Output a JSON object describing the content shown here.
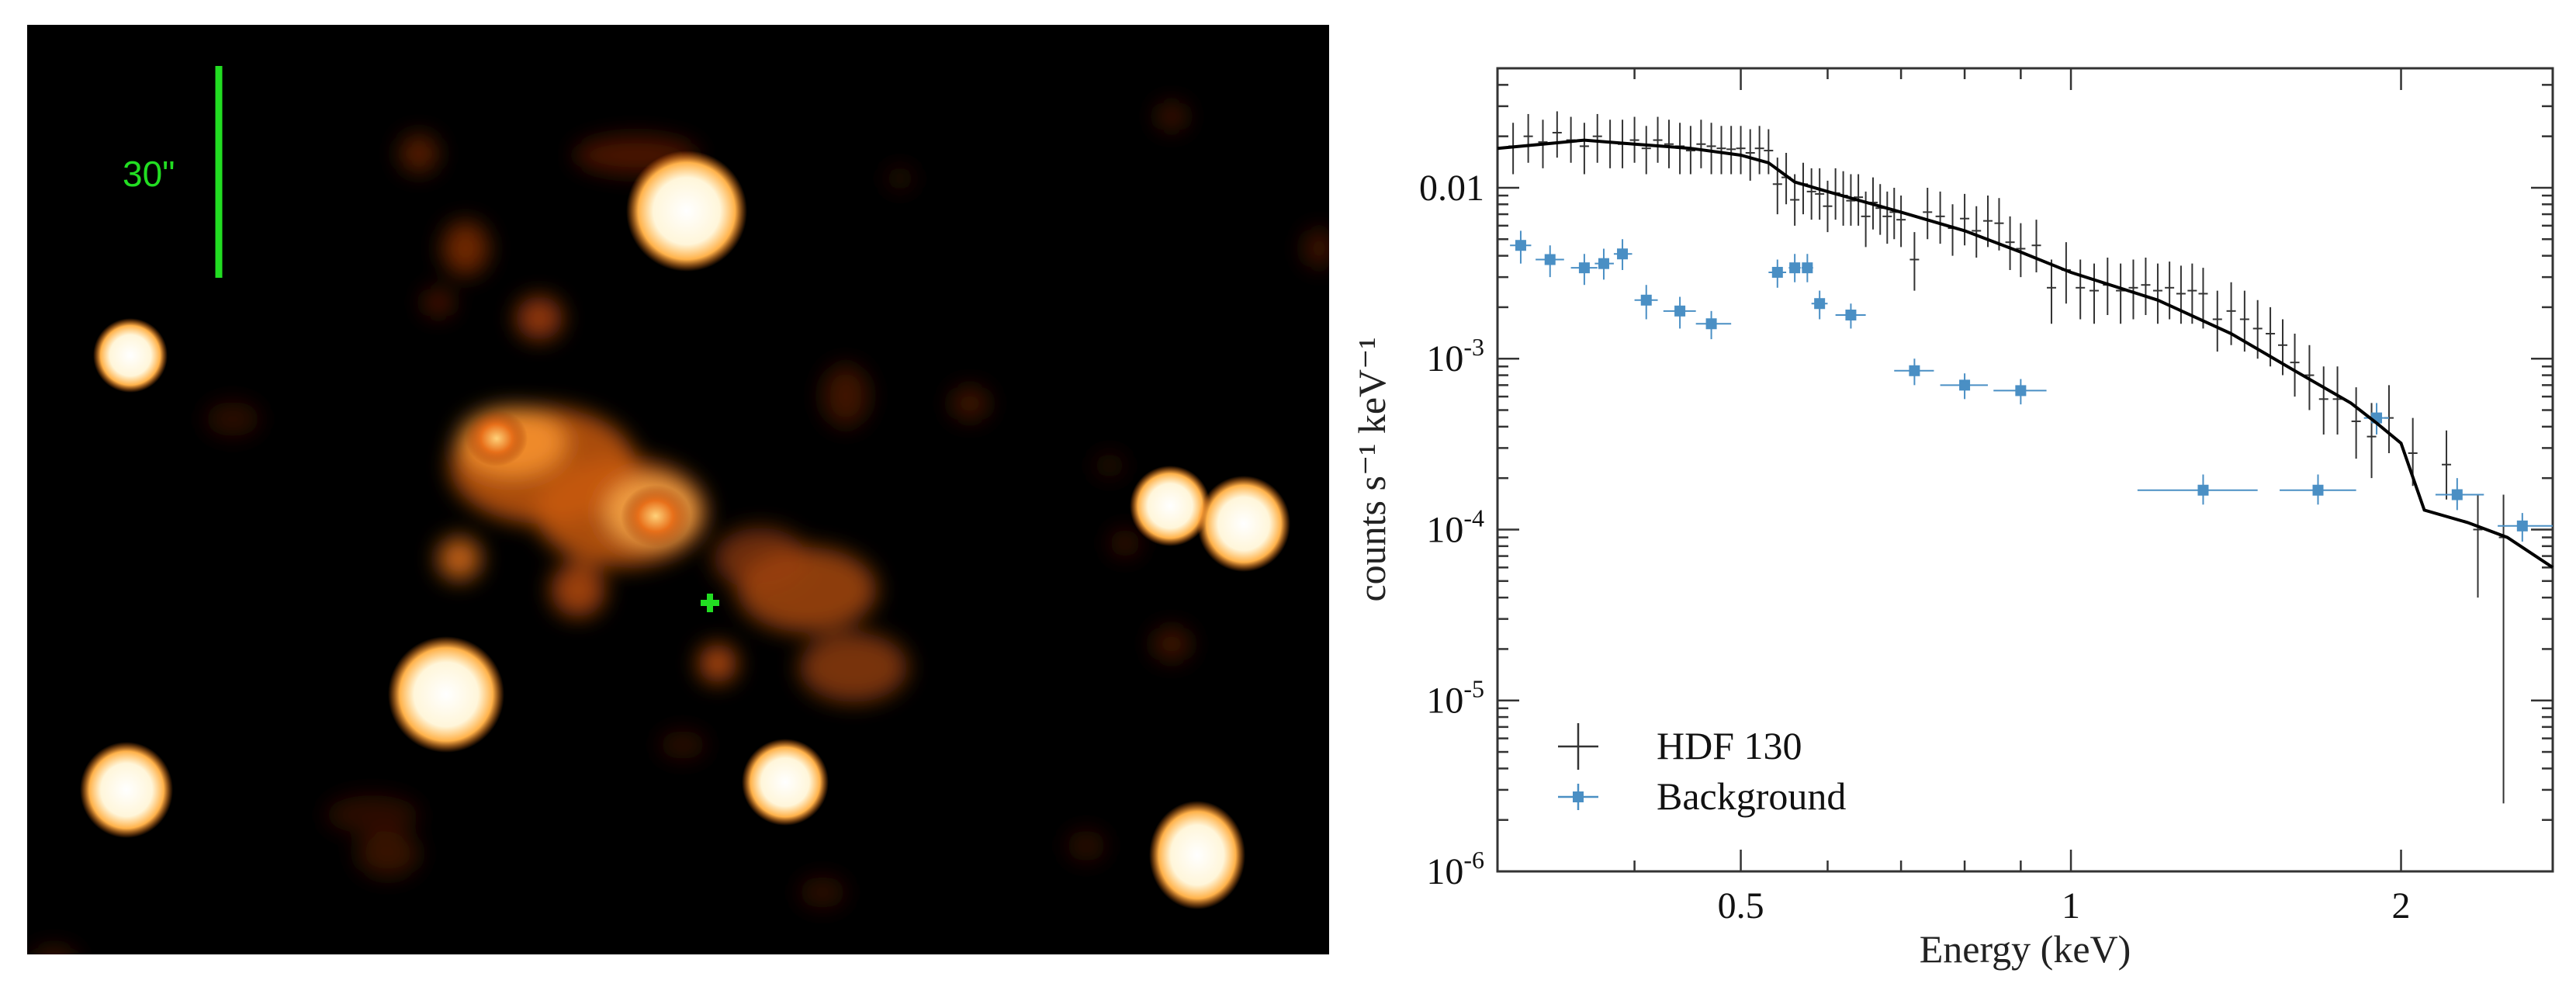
{
  "image_panel": {
    "scale_label": "30\"",
    "colors": {
      "background": "#000000",
      "marker": "#22dd22",
      "glow": "#ff8c1a",
      "core": "#fffbe8"
    }
  },
  "chart_data": {
    "type": "scatter",
    "xlabel": "Energy (keV)",
    "ylabel": "counts s⁻¹ keV⁻¹",
    "xscale": "log",
    "yscale": "log",
    "xlim": [
      0.3,
      2.75
    ],
    "ylim": [
      1e-06,
      0.05
    ],
    "x_ticks": [
      {
        "value": 0.5,
        "label": "0.5"
      },
      {
        "value": 1,
        "label": "1"
      },
      {
        "value": 2,
        "label": "2"
      }
    ],
    "y_ticks": [
      {
        "value": 0.01,
        "label": "0.01",
        "sup": ""
      },
      {
        "value": 0.001,
        "label": "10",
        "sup": "-3"
      },
      {
        "value": 0.0001,
        "label": "10",
        "sup": "-4"
      },
      {
        "value": 1e-05,
        "label": "10",
        "sup": "-5"
      },
      {
        "value": 1e-06,
        "label": "10",
        "sup": "-6"
      }
    ],
    "legend": {
      "placement": "bottom-left"
    },
    "series": [
      {
        "name": "HDF 130",
        "color": "#333333",
        "marker": "cross",
        "points": [
          [
            0.31,
            0.0175,
            0.012,
            0.024
          ],
          [
            0.32,
            0.02,
            0.014,
            0.027
          ],
          [
            0.33,
            0.0185,
            0.013,
            0.025
          ],
          [
            0.34,
            0.021,
            0.015,
            0.028
          ],
          [
            0.35,
            0.019,
            0.014,
            0.026
          ],
          [
            0.36,
            0.0175,
            0.012,
            0.024
          ],
          [
            0.37,
            0.02,
            0.014,
            0.027
          ],
          [
            0.38,
            0.0185,
            0.013,
            0.025
          ],
          [
            0.39,
            0.018,
            0.013,
            0.025
          ],
          [
            0.4,
            0.019,
            0.014,
            0.026
          ],
          [
            0.41,
            0.017,
            0.012,
            0.023
          ],
          [
            0.42,
            0.019,
            0.014,
            0.026
          ],
          [
            0.43,
            0.018,
            0.013,
            0.025
          ],
          [
            0.44,
            0.0175,
            0.012,
            0.024
          ],
          [
            0.45,
            0.0165,
            0.012,
            0.023
          ],
          [
            0.46,
            0.018,
            0.013,
            0.025
          ],
          [
            0.47,
            0.0175,
            0.012,
            0.024
          ],
          [
            0.48,
            0.017,
            0.012,
            0.023
          ],
          [
            0.49,
            0.0168,
            0.012,
            0.023
          ],
          [
            0.5,
            0.017,
            0.012,
            0.023
          ],
          [
            0.51,
            0.016,
            0.011,
            0.022
          ],
          [
            0.52,
            0.017,
            0.012,
            0.023
          ],
          [
            0.53,
            0.0165,
            0.012,
            0.022
          ],
          [
            0.54,
            0.0105,
            0.007,
            0.015
          ],
          [
            0.55,
            0.0115,
            0.008,
            0.016
          ],
          [
            0.56,
            0.0085,
            0.006,
            0.012
          ],
          [
            0.57,
            0.0105,
            0.007,
            0.014
          ],
          [
            0.58,
            0.0095,
            0.0065,
            0.013
          ],
          [
            0.59,
            0.0092,
            0.0065,
            0.013
          ],
          [
            0.6,
            0.0078,
            0.0055,
            0.011
          ],
          [
            0.61,
            0.0093,
            0.0065,
            0.013
          ],
          [
            0.62,
            0.009,
            0.006,
            0.0125
          ],
          [
            0.63,
            0.0084,
            0.006,
            0.012
          ],
          [
            0.64,
            0.0088,
            0.006,
            0.012
          ],
          [
            0.65,
            0.0068,
            0.0045,
            0.0095
          ],
          [
            0.66,
            0.0082,
            0.0057,
            0.0115
          ],
          [
            0.67,
            0.0076,
            0.0053,
            0.0105
          ],
          [
            0.68,
            0.0068,
            0.0047,
            0.0095
          ],
          [
            0.69,
            0.0072,
            0.005,
            0.01
          ],
          [
            0.7,
            0.0065,
            0.0045,
            0.009
          ],
          [
            0.72,
            0.0038,
            0.0025,
            0.0055
          ],
          [
            0.74,
            0.0072,
            0.005,
            0.01
          ],
          [
            0.76,
            0.0068,
            0.0047,
            0.0095
          ],
          [
            0.78,
            0.0058,
            0.004,
            0.008
          ],
          [
            0.8,
            0.0066,
            0.0046,
            0.0092
          ],
          [
            0.82,
            0.0056,
            0.0039,
            0.0078
          ],
          [
            0.84,
            0.0064,
            0.0045,
            0.009
          ],
          [
            0.86,
            0.0062,
            0.0043,
            0.0087
          ],
          [
            0.88,
            0.0048,
            0.0033,
            0.0068
          ],
          [
            0.9,
            0.0044,
            0.003,
            0.0062
          ],
          [
            0.93,
            0.0046,
            0.0032,
            0.0065
          ],
          [
            0.96,
            0.0026,
            0.0016,
            0.0038
          ],
          [
            0.99,
            0.0033,
            0.0021,
            0.0048
          ],
          [
            1.02,
            0.0026,
            0.0017,
            0.0038
          ],
          [
            1.05,
            0.0025,
            0.0016,
            0.0036
          ],
          [
            1.08,
            0.0027,
            0.0018,
            0.0039
          ],
          [
            1.11,
            0.0025,
            0.0016,
            0.0036
          ],
          [
            1.14,
            0.0026,
            0.0017,
            0.0038
          ],
          [
            1.17,
            0.0027,
            0.0018,
            0.0039
          ],
          [
            1.2,
            0.0025,
            0.0016,
            0.0036
          ],
          [
            1.23,
            0.0026,
            0.0017,
            0.0037
          ],
          [
            1.26,
            0.0024,
            0.0016,
            0.0035
          ],
          [
            1.29,
            0.0025,
            0.0016,
            0.0036
          ],
          [
            1.32,
            0.0024,
            0.0015,
            0.0034
          ],
          [
            1.36,
            0.0017,
            0.0011,
            0.0025
          ],
          [
            1.4,
            0.0019,
            0.0012,
            0.0028
          ],
          [
            1.44,
            0.0017,
            0.0011,
            0.0025
          ],
          [
            1.48,
            0.0015,
            0.001,
            0.0022
          ],
          [
            1.52,
            0.0014,
            0.0009,
            0.002
          ],
          [
            1.56,
            0.0012,
            0.0008,
            0.0017
          ],
          [
            1.6,
            0.00095,
            0.0006,
            0.0014
          ],
          [
            1.65,
            0.0008,
            0.0005,
            0.0012
          ],
          [
            1.7,
            0.00058,
            0.00036,
            0.0009
          ],
          [
            1.75,
            0.00058,
            0.00036,
            0.0009
          ],
          [
            1.82,
            0.00043,
            0.00026,
            0.00068
          ],
          [
            1.88,
            0.00035,
            0.0002,
            0.00055
          ],
          [
            1.95,
            0.00045,
            0.00028,
            0.0007
          ],
          [
            2.05,
            0.00028,
            0.00018,
            0.00045
          ],
          [
            2.2,
            0.00024,
            0.00015,
            0.00038
          ],
          [
            2.35,
            0.0001,
            4e-05,
            0.00016
          ],
          [
            2.48,
            9e-05,
            2.5e-06,
            0.00016
          ]
        ]
      },
      {
        "name": "Background",
        "color": "#4a8fc4",
        "marker": "square",
        "points": [
          [
            0.315,
            0.0046,
            0.0036,
            0.0056,
            0.308,
            0.322
          ],
          [
            0.335,
            0.0038,
            0.003,
            0.0046,
            0.325,
            0.345
          ],
          [
            0.36,
            0.0034,
            0.0027,
            0.0041,
            0.35,
            0.37
          ],
          [
            0.375,
            0.0036,
            0.0029,
            0.0044,
            0.368,
            0.383
          ],
          [
            0.39,
            0.0041,
            0.0033,
            0.005,
            0.383,
            0.398
          ],
          [
            0.41,
            0.0022,
            0.0017,
            0.0027,
            0.4,
            0.42
          ],
          [
            0.44,
            0.0019,
            0.0015,
            0.0023,
            0.425,
            0.455
          ],
          [
            0.47,
            0.0016,
            0.0013,
            0.0019,
            0.455,
            0.49
          ],
          [
            0.54,
            0.0032,
            0.0026,
            0.0038,
            0.53,
            0.55
          ],
          [
            0.56,
            0.0034,
            0.0028,
            0.0041,
            0.553,
            0.567
          ],
          [
            0.575,
            0.0034,
            0.0028,
            0.0041,
            0.568,
            0.582
          ],
          [
            0.59,
            0.0021,
            0.0017,
            0.0025,
            0.58,
            0.6
          ],
          [
            0.63,
            0.0018,
            0.0015,
            0.0021,
            0.61,
            0.65
          ],
          [
            0.72,
            0.00085,
            0.0007,
            0.001,
            0.69,
            0.75
          ],
          [
            0.8,
            0.0007,
            0.00058,
            0.00082,
            0.76,
            0.84
          ],
          [
            0.9,
            0.00065,
            0.00054,
            0.00076,
            0.85,
            0.95
          ],
          [
            1.32,
            0.00017,
            0.00014,
            0.00021,
            1.15,
            1.48
          ],
          [
            1.68,
            0.00017,
            0.00014,
            0.00021,
            1.55,
            1.82
          ],
          [
            1.9,
            0.00045,
            0.00036,
            0.00055,
            1.85,
            1.95
          ],
          [
            2.25,
            0.00016,
            0.00013,
            0.0002,
            2.15,
            2.38
          ],
          [
            2.58,
            0.000105,
            8.5e-05,
            0.000125,
            2.45,
            2.75
          ]
        ]
      },
      {
        "name": "",
        "color": "#000000",
        "type": "model-line",
        "points": [
          [
            0.3,
            0.017
          ],
          [
            0.33,
            0.018
          ],
          [
            0.36,
            0.019
          ],
          [
            0.4,
            0.018
          ],
          [
            0.45,
            0.017
          ],
          [
            0.5,
            0.0155
          ],
          [
            0.53,
            0.014
          ],
          [
            0.56,
            0.0108
          ],
          [
            0.6,
            0.0095
          ],
          [
            0.7,
            0.0072
          ],
          [
            0.8,
            0.0056
          ],
          [
            0.9,
            0.0042
          ],
          [
            1.0,
            0.0032
          ],
          [
            1.2,
            0.0022
          ],
          [
            1.4,
            0.0014
          ],
          [
            1.6,
            0.00085
          ],
          [
            1.8,
            0.00055
          ],
          [
            1.9,
            0.00042
          ],
          [
            2.0,
            0.00032
          ],
          [
            2.1,
            0.00013
          ],
          [
            2.3,
            0.00011
          ],
          [
            2.5,
            9e-05
          ],
          [
            2.75,
            6e-05
          ]
        ]
      }
    ]
  }
}
